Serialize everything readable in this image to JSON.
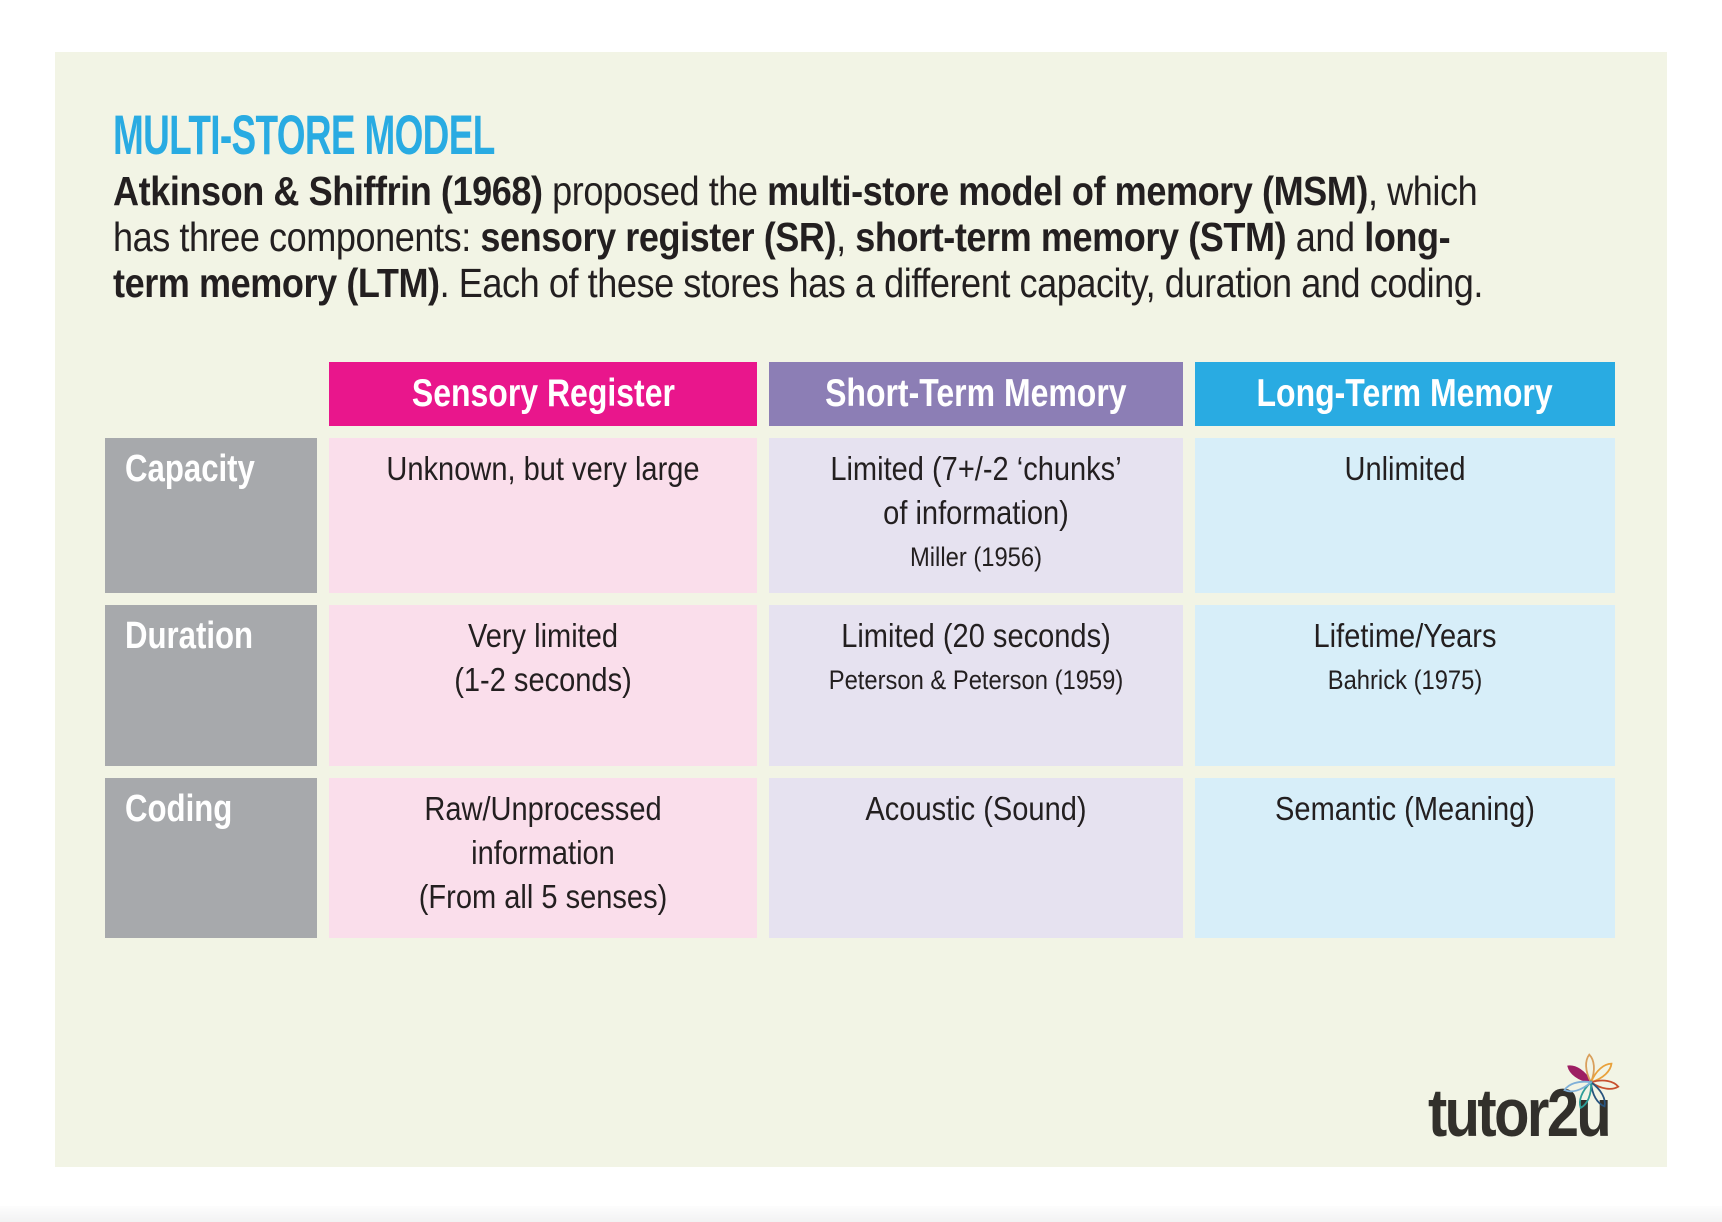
{
  "page": {
    "title": "MULTI-STORE MODEL",
    "intro_lines": [
      [
        {
          "t": "Atkinson & Shiffrin (1968)",
          "b": true
        },
        {
          "t": " proposed the ",
          "b": false
        },
        {
          "t": "multi-store model of memory (MSM)",
          "b": true
        },
        {
          "t": ", which",
          "b": false
        }
      ],
      [
        {
          "t": "has three components: ",
          "b": false
        },
        {
          "t": "sensory register (SR)",
          "b": true
        },
        {
          "t": ", ",
          "b": false
        },
        {
          "t": "short-term memory (STM)",
          "b": true
        },
        {
          "t": " and ",
          "b": false
        },
        {
          "t": "long-",
          "b": true
        }
      ],
      [
        {
          "t": "term memory (LTM)",
          "b": true
        },
        {
          "t": ". Each of these stores has a different capacity, duration and coding.",
          "b": false
        }
      ]
    ]
  },
  "table": {
    "columns": [
      {
        "label": "Sensory Register",
        "header_bg": "#e9168c",
        "cell_bg": "#fadeeb"
      },
      {
        "label": "Short-Term Memory",
        "header_bg": "#8c7eb5",
        "cell_bg": "#e6e2f0"
      },
      {
        "label": "Long-Term Memory",
        "header_bg": "#29abe2",
        "cell_bg": "#d7eef9"
      }
    ],
    "rows": [
      {
        "label": "Capacity",
        "cells": [
          {
            "main": "Unknown, but very large",
            "cite": ""
          },
          {
            "main": "Limited (7+/-2 ‘chunks’\nof information)",
            "cite": "Miller (1956)"
          },
          {
            "main": "Unlimited",
            "cite": ""
          }
        ]
      },
      {
        "label": "Duration",
        "cells": [
          {
            "main": "Very limited\n(1-2 seconds)",
            "cite": ""
          },
          {
            "main": "Limited (20 seconds)",
            "cite": "Peterson & Peterson (1959)"
          },
          {
            "main": "Lifetime/Years",
            "cite": "Bahrick (1975)"
          }
        ]
      },
      {
        "label": "Coding",
        "cells": [
          {
            "main": "Raw/Unprocessed\ninformation\n(From all 5 senses)",
            "cite": ""
          },
          {
            "main": "Acoustic (Sound)",
            "cite": ""
          },
          {
            "main": "Semantic (Meaning)",
            "cite": ""
          }
        ]
      }
    ]
  },
  "logo": {
    "text": "tutor2u",
    "text_color": "#32302b",
    "petal_colors": [
      "#9d1f63",
      "#d99f5c",
      "#e9a13b",
      "#c8502f",
      "#28537e",
      "#2e9e98",
      "#7fb0d8"
    ]
  },
  "colors": {
    "panel_bg": "#f2f4e5",
    "accent_cyan": "#29abe2",
    "row_header_bg": "#a7a9ac",
    "body_text": "#231f20"
  }
}
